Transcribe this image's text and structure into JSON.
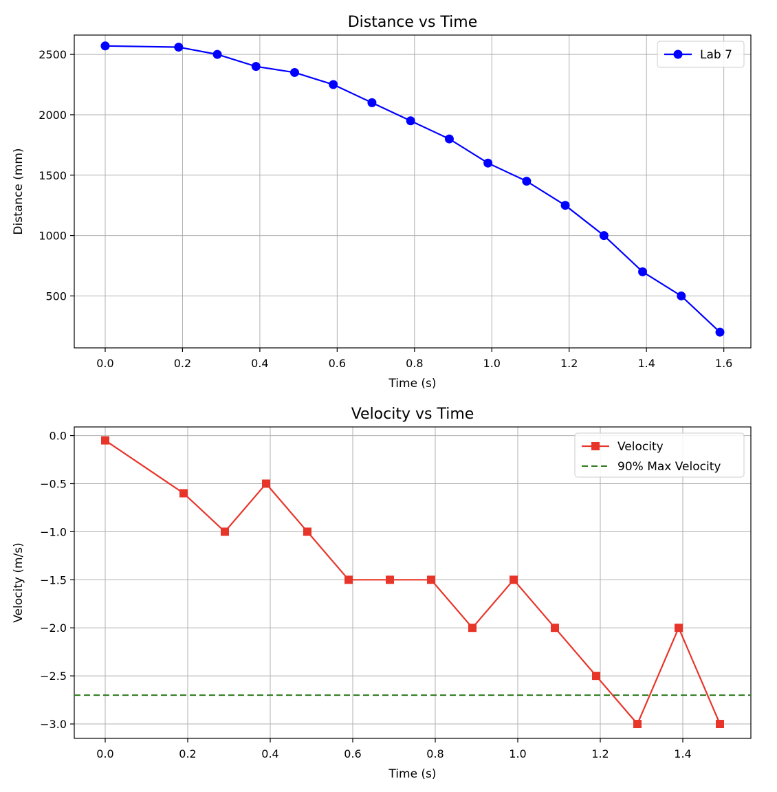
{
  "chart_data": [
    {
      "type": "line",
      "title": "Distance vs Time",
      "xlabel": "Time (s)",
      "ylabel": "Distance (mm)",
      "xlim": [
        -0.08,
        1.67
      ],
      "ylim": [
        70,
        2660
      ],
      "xticks": [
        0.0,
        0.2,
        0.4,
        0.6,
        0.8,
        1.0,
        1.2,
        1.4,
        1.6
      ],
      "xtick_labels": [
        "0.0",
        "0.2",
        "0.4",
        "0.6",
        "0.8",
        "1.0",
        "1.2",
        "1.4",
        "1.6"
      ],
      "yticks": [
        500,
        1000,
        1500,
        2000,
        2500
      ],
      "ytick_labels": [
        "500",
        "1000",
        "1500",
        "2000",
        "2500"
      ],
      "grid": true,
      "legend_position": "top-right",
      "series": [
        {
          "name": "Lab 7",
          "color": "#0000ff",
          "marker": "circle",
          "line_style": "solid",
          "x": [
            0.0,
            0.19,
            0.29,
            0.39,
            0.49,
            0.59,
            0.69,
            0.79,
            0.89,
            0.99,
            1.09,
            1.19,
            1.29,
            1.39,
            1.49,
            1.59
          ],
          "y": [
            2570,
            2560,
            2500,
            2400,
            2350,
            2250,
            2100,
            1950,
            1800,
            1600,
            1450,
            1250,
            1000,
            700,
            500,
            200
          ]
        }
      ]
    },
    {
      "type": "line",
      "title": "Velocity vs Time",
      "xlabel": "Time (s)",
      "ylabel": "Velocity (m/s)",
      "xlim": [
        -0.075,
        1.565
      ],
      "ylim": [
        -3.15,
        0.09
      ],
      "xticks": [
        0.0,
        0.2,
        0.4,
        0.6,
        0.8,
        1.0,
        1.2,
        1.4
      ],
      "xtick_labels": [
        "0.0",
        "0.2",
        "0.4",
        "0.6",
        "0.8",
        "1.0",
        "1.2",
        "1.4"
      ],
      "yticks": [
        0.0,
        -0.5,
        -1.0,
        -1.5,
        -2.0,
        -2.5,
        -3.0
      ],
      "ytick_labels": [
        "0.0",
        "−0.5",
        "−1.0",
        "−1.5",
        "−2.0",
        "−2.5",
        "−3.0"
      ],
      "grid": true,
      "legend_position": "top-right",
      "series": [
        {
          "name": "Velocity",
          "color": "#e8352a",
          "marker": "square",
          "line_style": "solid",
          "x": [
            0.0,
            0.19,
            0.29,
            0.39,
            0.49,
            0.59,
            0.69,
            0.79,
            0.89,
            0.99,
            1.09,
            1.19,
            1.29,
            1.39,
            1.49
          ],
          "y": [
            -0.05,
            -0.6,
            -1.0,
            -0.5,
            -1.0,
            -1.5,
            -1.5,
            -1.5,
            -2.0,
            -1.5,
            -2.0,
            -2.5,
            -3.0,
            -2.0,
            -3.0
          ]
        },
        {
          "name": "90% Max Velocity",
          "color": "#2a7a1a",
          "marker": "none",
          "line_style": "dashed",
          "hline": -2.7
        }
      ]
    }
  ]
}
